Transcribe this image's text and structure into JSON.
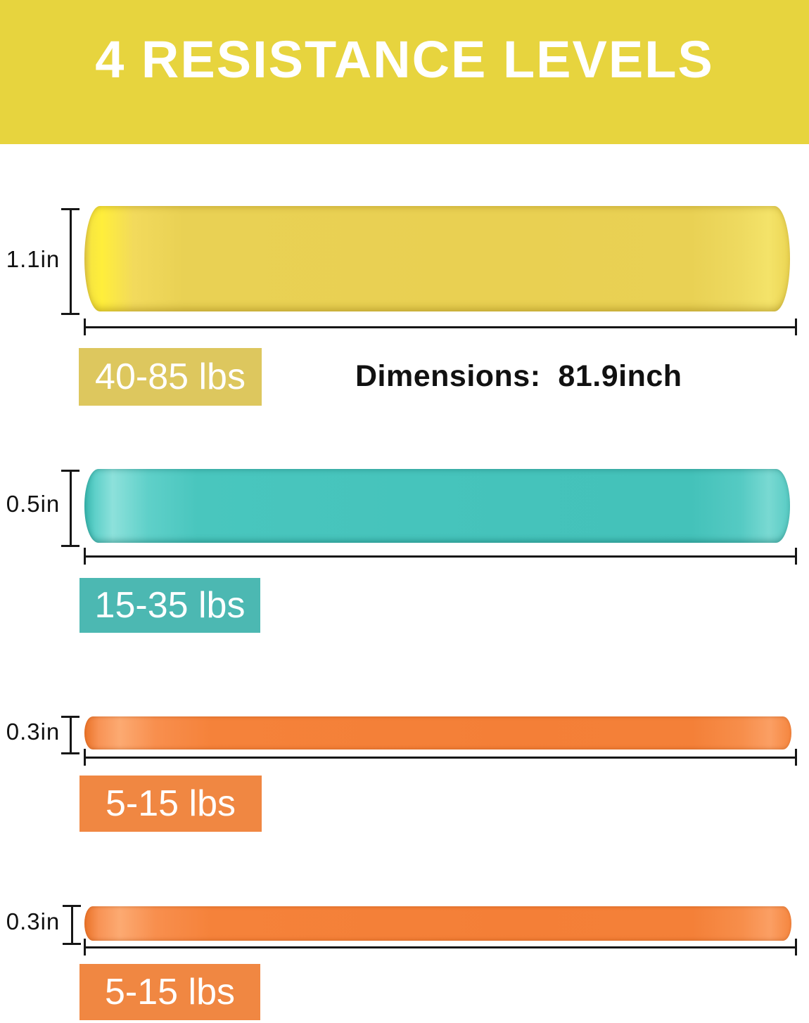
{
  "header": {
    "title": "4 RESISTANCE LEVELS",
    "bg_color": "#e7d43e",
    "text_color": "#ffffff"
  },
  "dimensions_note": "Dimensions:  81.9inch",
  "bands": [
    {
      "id": "yellow",
      "thickness": "1.1in",
      "weight_range": "40-85 lbs",
      "band_color": "#e9d154",
      "band_highlight": "#ffee3b",
      "label_bg": "#ddc75e"
    },
    {
      "id": "teal",
      "thickness": "0.5in",
      "weight_range": "15-35 lbs",
      "band_color": "#47c5bd",
      "band_highlight": "#8de1db",
      "label_bg": "#4cb8b2"
    },
    {
      "id": "orange-1",
      "thickness": "0.3in",
      "weight_range": "5-15 lbs",
      "band_color": "#f5823a",
      "band_highlight": "#fcaa72",
      "label_bg": "#f08742"
    },
    {
      "id": "orange-2",
      "thickness": "0.3in",
      "weight_range": "5-15 lbs",
      "band_color": "#f5823a",
      "band_highlight": "#fcaa72",
      "label_bg": "#f08742"
    }
  ]
}
